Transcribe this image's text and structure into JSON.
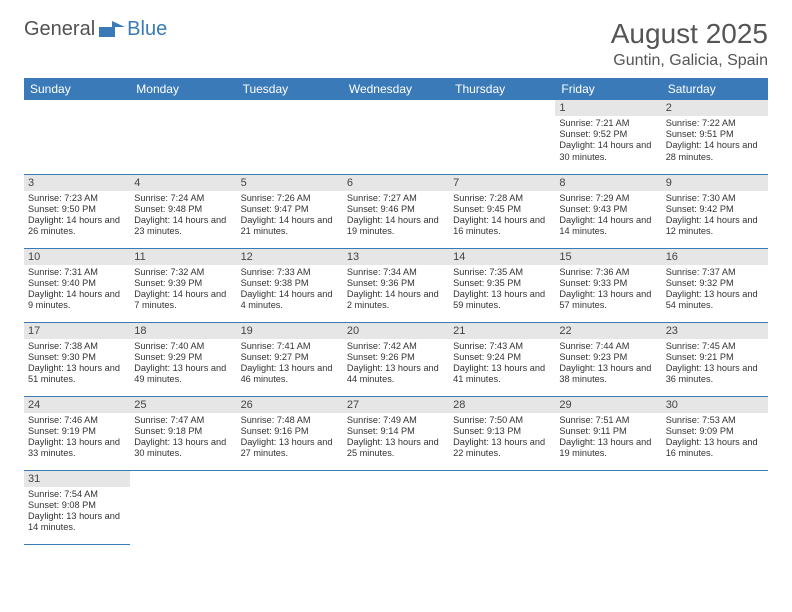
{
  "logo": {
    "word1": "General",
    "word2": "Blue"
  },
  "header": {
    "month_title": "August 2025",
    "location": "Guntin, Galicia, Spain"
  },
  "colors": {
    "header_bg": "#3a7ab8",
    "header_text": "#ffffff",
    "daynum_bg": "#e6e6e6",
    "row_border": "#3a7ab8"
  },
  "weekdays": [
    "Sunday",
    "Monday",
    "Tuesday",
    "Wednesday",
    "Thursday",
    "Friday",
    "Saturday"
  ],
  "weeks": [
    [
      null,
      null,
      null,
      null,
      null,
      {
        "num": "1",
        "sunrise": "Sunrise: 7:21 AM",
        "sunset": "Sunset: 9:52 PM",
        "daylight": "Daylight: 14 hours and 30 minutes."
      },
      {
        "num": "2",
        "sunrise": "Sunrise: 7:22 AM",
        "sunset": "Sunset: 9:51 PM",
        "daylight": "Daylight: 14 hours and 28 minutes."
      }
    ],
    [
      {
        "num": "3",
        "sunrise": "Sunrise: 7:23 AM",
        "sunset": "Sunset: 9:50 PM",
        "daylight": "Daylight: 14 hours and 26 minutes."
      },
      {
        "num": "4",
        "sunrise": "Sunrise: 7:24 AM",
        "sunset": "Sunset: 9:48 PM",
        "daylight": "Daylight: 14 hours and 23 minutes."
      },
      {
        "num": "5",
        "sunrise": "Sunrise: 7:26 AM",
        "sunset": "Sunset: 9:47 PM",
        "daylight": "Daylight: 14 hours and 21 minutes."
      },
      {
        "num": "6",
        "sunrise": "Sunrise: 7:27 AM",
        "sunset": "Sunset: 9:46 PM",
        "daylight": "Daylight: 14 hours and 19 minutes."
      },
      {
        "num": "7",
        "sunrise": "Sunrise: 7:28 AM",
        "sunset": "Sunset: 9:45 PM",
        "daylight": "Daylight: 14 hours and 16 minutes."
      },
      {
        "num": "8",
        "sunrise": "Sunrise: 7:29 AM",
        "sunset": "Sunset: 9:43 PM",
        "daylight": "Daylight: 14 hours and 14 minutes."
      },
      {
        "num": "9",
        "sunrise": "Sunrise: 7:30 AM",
        "sunset": "Sunset: 9:42 PM",
        "daylight": "Daylight: 14 hours and 12 minutes."
      }
    ],
    [
      {
        "num": "10",
        "sunrise": "Sunrise: 7:31 AM",
        "sunset": "Sunset: 9:40 PM",
        "daylight": "Daylight: 14 hours and 9 minutes."
      },
      {
        "num": "11",
        "sunrise": "Sunrise: 7:32 AM",
        "sunset": "Sunset: 9:39 PM",
        "daylight": "Daylight: 14 hours and 7 minutes."
      },
      {
        "num": "12",
        "sunrise": "Sunrise: 7:33 AM",
        "sunset": "Sunset: 9:38 PM",
        "daylight": "Daylight: 14 hours and 4 minutes."
      },
      {
        "num": "13",
        "sunrise": "Sunrise: 7:34 AM",
        "sunset": "Sunset: 9:36 PM",
        "daylight": "Daylight: 14 hours and 2 minutes."
      },
      {
        "num": "14",
        "sunrise": "Sunrise: 7:35 AM",
        "sunset": "Sunset: 9:35 PM",
        "daylight": "Daylight: 13 hours and 59 minutes."
      },
      {
        "num": "15",
        "sunrise": "Sunrise: 7:36 AM",
        "sunset": "Sunset: 9:33 PM",
        "daylight": "Daylight: 13 hours and 57 minutes."
      },
      {
        "num": "16",
        "sunrise": "Sunrise: 7:37 AM",
        "sunset": "Sunset: 9:32 PM",
        "daylight": "Daylight: 13 hours and 54 minutes."
      }
    ],
    [
      {
        "num": "17",
        "sunrise": "Sunrise: 7:38 AM",
        "sunset": "Sunset: 9:30 PM",
        "daylight": "Daylight: 13 hours and 51 minutes."
      },
      {
        "num": "18",
        "sunrise": "Sunrise: 7:40 AM",
        "sunset": "Sunset: 9:29 PM",
        "daylight": "Daylight: 13 hours and 49 minutes."
      },
      {
        "num": "19",
        "sunrise": "Sunrise: 7:41 AM",
        "sunset": "Sunset: 9:27 PM",
        "daylight": "Daylight: 13 hours and 46 minutes."
      },
      {
        "num": "20",
        "sunrise": "Sunrise: 7:42 AM",
        "sunset": "Sunset: 9:26 PM",
        "daylight": "Daylight: 13 hours and 44 minutes."
      },
      {
        "num": "21",
        "sunrise": "Sunrise: 7:43 AM",
        "sunset": "Sunset: 9:24 PM",
        "daylight": "Daylight: 13 hours and 41 minutes."
      },
      {
        "num": "22",
        "sunrise": "Sunrise: 7:44 AM",
        "sunset": "Sunset: 9:23 PM",
        "daylight": "Daylight: 13 hours and 38 minutes."
      },
      {
        "num": "23",
        "sunrise": "Sunrise: 7:45 AM",
        "sunset": "Sunset: 9:21 PM",
        "daylight": "Daylight: 13 hours and 36 minutes."
      }
    ],
    [
      {
        "num": "24",
        "sunrise": "Sunrise: 7:46 AM",
        "sunset": "Sunset: 9:19 PM",
        "daylight": "Daylight: 13 hours and 33 minutes."
      },
      {
        "num": "25",
        "sunrise": "Sunrise: 7:47 AM",
        "sunset": "Sunset: 9:18 PM",
        "daylight": "Daylight: 13 hours and 30 minutes."
      },
      {
        "num": "26",
        "sunrise": "Sunrise: 7:48 AM",
        "sunset": "Sunset: 9:16 PM",
        "daylight": "Daylight: 13 hours and 27 minutes."
      },
      {
        "num": "27",
        "sunrise": "Sunrise: 7:49 AM",
        "sunset": "Sunset: 9:14 PM",
        "daylight": "Daylight: 13 hours and 25 minutes."
      },
      {
        "num": "28",
        "sunrise": "Sunrise: 7:50 AM",
        "sunset": "Sunset: 9:13 PM",
        "daylight": "Daylight: 13 hours and 22 minutes."
      },
      {
        "num": "29",
        "sunrise": "Sunrise: 7:51 AM",
        "sunset": "Sunset: 9:11 PM",
        "daylight": "Daylight: 13 hours and 19 minutes."
      },
      {
        "num": "30",
        "sunrise": "Sunrise: 7:53 AM",
        "sunset": "Sunset: 9:09 PM",
        "daylight": "Daylight: 13 hours and 16 minutes."
      }
    ],
    [
      {
        "num": "31",
        "sunrise": "Sunrise: 7:54 AM",
        "sunset": "Sunset: 9:08 PM",
        "daylight": "Daylight: 13 hours and 14 minutes."
      },
      null,
      null,
      null,
      null,
      null,
      null
    ]
  ]
}
